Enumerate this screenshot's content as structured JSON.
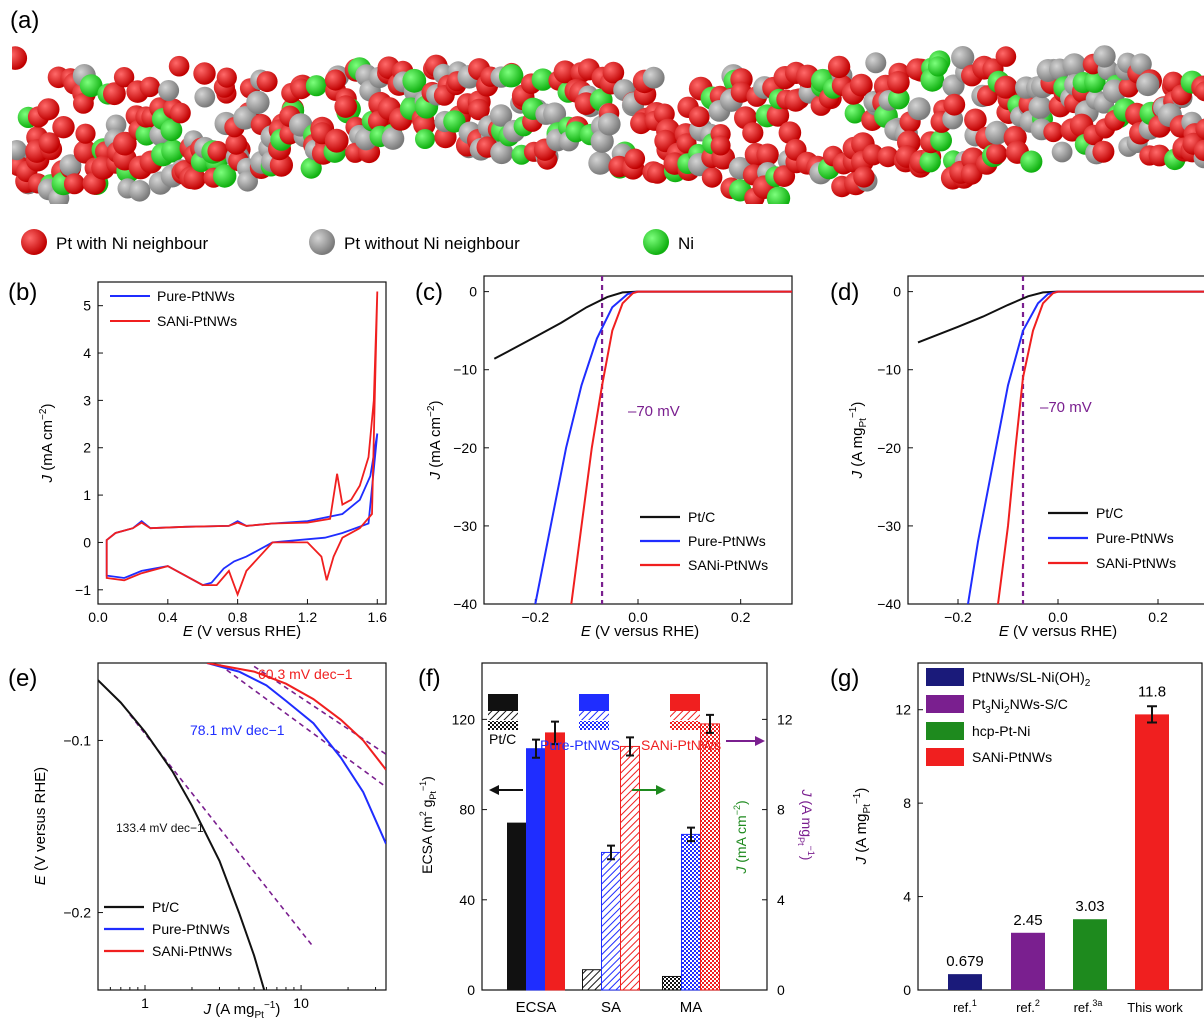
{
  "colors": {
    "black": "#111111",
    "blue": "#1f2dff",
    "red": "#f01f1f",
    "purple": "#7a1f8f",
    "green": "#1e8a1e",
    "navy": "#1a1a7a",
    "pt_ni": "#e01010",
    "pt": "#9a9a9a",
    "ni": "#22dd22"
  },
  "panel_a": {
    "label": "(a)",
    "legend": [
      {
        "label": "Pt with Ni neighbour",
        "color": "#e01010"
      },
      {
        "label": "Pt without Ni neighbour",
        "color": "#9a9a9a"
      },
      {
        "label": "Ni",
        "color": "#22dd22"
      }
    ]
  },
  "chart_data": [
    {
      "panel": "(b)",
      "type": "line",
      "xlabel": "E (V versus RHE)",
      "ylabel": "J (mA cm−2)",
      "xlim": [
        0.0,
        1.65
      ],
      "ylim": [
        -1.3,
        5.5
      ],
      "xticks": [
        0.0,
        0.4,
        0.8,
        1.2,
        1.6
      ],
      "xtick_labels": [
        "0.0",
        "0.4",
        "0.8",
        "1.2",
        "1.6"
      ],
      "yticks": [
        -1,
        0,
        1,
        2,
        3,
        4,
        5
      ],
      "ytick_labels": [
        "−1",
        "0",
        "1",
        "2",
        "3",
        "4",
        "5"
      ],
      "legend_position": "top-left",
      "series": [
        {
          "name": "Pure-PtNWs",
          "color": "blue",
          "forward": [
            [
              0.05,
              0.05
            ],
            [
              0.1,
              0.2
            ],
            [
              0.2,
              0.3
            ],
            [
              0.25,
              0.45
            ],
            [
              0.3,
              0.3
            ],
            [
              0.5,
              0.33
            ],
            [
              0.75,
              0.35
            ],
            [
              0.8,
              0.45
            ],
            [
              0.85,
              0.35
            ],
            [
              1.0,
              0.4
            ],
            [
              1.2,
              0.45
            ],
            [
              1.4,
              0.6
            ],
            [
              1.5,
              0.9
            ],
            [
              1.56,
              1.4
            ],
            [
              1.6,
              2.3
            ]
          ],
          "reverse": [
            [
              1.6,
              2.3
            ],
            [
              1.55,
              0.4
            ],
            [
              1.4,
              0.2
            ],
            [
              1.3,
              0.1
            ],
            [
              1.0,
              0.0
            ],
            [
              0.85,
              -0.3
            ],
            [
              0.78,
              -0.4
            ],
            [
              0.72,
              -0.55
            ],
            [
              0.65,
              -0.85
            ],
            [
              0.6,
              -0.9
            ],
            [
              0.4,
              -0.5
            ],
            [
              0.25,
              -0.6
            ],
            [
              0.15,
              -0.75
            ],
            [
              0.05,
              -0.7
            ]
          ]
        },
        {
          "name": "SANi-PtNWs",
          "color": "red",
          "forward": [
            [
              0.05,
              0.05
            ],
            [
              0.1,
              0.2
            ],
            [
              0.2,
              0.3
            ],
            [
              0.25,
              0.42
            ],
            [
              0.3,
              0.3
            ],
            [
              0.5,
              0.33
            ],
            [
              0.75,
              0.35
            ],
            [
              0.8,
              0.42
            ],
            [
              0.85,
              0.35
            ],
            [
              1.0,
              0.4
            ],
            [
              1.2,
              0.42
            ],
            [
              1.33,
              0.5
            ],
            [
              1.37,
              1.45
            ],
            [
              1.4,
              0.8
            ],
            [
              1.45,
              0.9
            ],
            [
              1.5,
              1.2
            ],
            [
              1.55,
              1.8
            ],
            [
              1.58,
              3.0
            ],
            [
              1.6,
              5.3
            ]
          ],
          "reverse": [
            [
              1.6,
              5.3
            ],
            [
              1.57,
              0.6
            ],
            [
              1.5,
              0.3
            ],
            [
              1.4,
              0.1
            ],
            [
              1.35,
              -0.3
            ],
            [
              1.31,
              -0.8
            ],
            [
              1.28,
              -0.3
            ],
            [
              1.2,
              0.0
            ],
            [
              1.0,
              0.0
            ],
            [
              0.85,
              -0.6
            ],
            [
              0.8,
              -1.1
            ],
            [
              0.75,
              -0.6
            ],
            [
              0.68,
              -0.9
            ],
            [
              0.6,
              -0.9
            ],
            [
              0.4,
              -0.5
            ],
            [
              0.25,
              -0.65
            ],
            [
              0.15,
              -0.8
            ],
            [
              0.05,
              -0.75
            ]
          ]
        }
      ]
    },
    {
      "panel": "(c)",
      "type": "line",
      "xlabel": "E (V versus RHE)",
      "ylabel": "J (mA cm−2)",
      "xlim": [
        -0.3,
        0.3
      ],
      "ylim": [
        -40,
        2
      ],
      "xticks": [
        -0.2,
        0.0,
        0.2
      ],
      "xtick_labels": [
        "−0.2",
        "0.0",
        "0.2"
      ],
      "yticks": [
        -40,
        -30,
        -20,
        -10,
        0
      ],
      "ytick_labels": [
        "−40",
        "−30",
        "−20",
        "−10",
        "0"
      ],
      "annotation": "–70 mV",
      "annotation_x": -0.07,
      "legend_position": "bottom-right",
      "series": [
        {
          "name": "Pt/C",
          "color": "black",
          "points": [
            [
              -0.28,
              -8.6
            ],
            [
              -0.2,
              -5.8
            ],
            [
              -0.15,
              -4.0
            ],
            [
              -0.1,
              -2.0
            ],
            [
              -0.06,
              -0.7
            ],
            [
              -0.03,
              -0.1
            ],
            [
              0.0,
              0.0
            ],
            [
              0.3,
              0.0
            ]
          ]
        },
        {
          "name": "Pure-PtNWs",
          "color": "blue",
          "points": [
            [
              -0.2,
              -40
            ],
            [
              -0.17,
              -30
            ],
            [
              -0.14,
              -20
            ],
            [
              -0.11,
              -12
            ],
            [
              -0.08,
              -6
            ],
            [
              -0.05,
              -2
            ],
            [
              -0.02,
              -0.3
            ],
            [
              0.0,
              0.0
            ],
            [
              0.3,
              0.0
            ]
          ]
        },
        {
          "name": "SANi-PtNWs",
          "color": "red",
          "points": [
            [
              -0.13,
              -40
            ],
            [
              -0.11,
              -30
            ],
            [
              -0.09,
              -20
            ],
            [
              -0.07,
              -12
            ],
            [
              -0.05,
              -5
            ],
            [
              -0.03,
              -1.5
            ],
            [
              -0.01,
              -0.2
            ],
            [
              0.0,
              0.0
            ],
            [
              0.3,
              0.0
            ]
          ]
        }
      ]
    },
    {
      "panel": "(d)",
      "type": "line",
      "xlabel": "E (V versus RHE)",
      "ylabel": "J (A mgPt−1)",
      "xlim": [
        -0.3,
        0.3
      ],
      "ylim": [
        -40,
        2
      ],
      "xticks": [
        -0.2,
        0.0,
        0.2
      ],
      "xtick_labels": [
        "−0.2",
        "0.0",
        "0.2"
      ],
      "yticks": [
        -40,
        -30,
        -20,
        -10,
        0
      ],
      "ytick_labels": [
        "−40",
        "−30",
        "−20",
        "−10",
        "0"
      ],
      "annotation": "–70 mV",
      "annotation_x": -0.07,
      "legend_position": "bottom-right",
      "series": [
        {
          "name": "Pt/C",
          "color": "black",
          "points": [
            [
              -0.28,
              -6.5
            ],
            [
              -0.2,
              -4.5
            ],
            [
              -0.15,
              -3.2
            ],
            [
              -0.1,
              -1.7
            ],
            [
              -0.06,
              -0.6
            ],
            [
              -0.03,
              -0.1
            ],
            [
              0.0,
              0.0
            ],
            [
              0.3,
              0.0
            ]
          ]
        },
        {
          "name": "Pure-PtNWs",
          "color": "blue",
          "points": [
            [
              -0.18,
              -40
            ],
            [
              -0.16,
              -32
            ],
            [
              -0.13,
              -22
            ],
            [
              -0.1,
              -12
            ],
            [
              -0.07,
              -5
            ],
            [
              -0.04,
              -1.5
            ],
            [
              -0.02,
              -0.3
            ],
            [
              0.0,
              0.0
            ],
            [
              0.3,
              0.0
            ]
          ]
        },
        {
          "name": "SANi-PtNWs",
          "color": "red",
          "points": [
            [
              -0.12,
              -40
            ],
            [
              -0.1,
              -30
            ],
            [
              -0.085,
              -20
            ],
            [
              -0.07,
              -11
            ],
            [
              -0.05,
              -5
            ],
            [
              -0.03,
              -1.5
            ],
            [
              -0.01,
              -0.2
            ],
            [
              0.0,
              0.0
            ],
            [
              0.3,
              0.0
            ]
          ]
        }
      ]
    },
    {
      "panel": "(e)",
      "type": "line",
      "xlabel": "J (A mgPt−1)",
      "ylabel": "E (V versus RHE)",
      "xscale": "log",
      "xlim": [
        0.5,
        35
      ],
      "ylim": [
        -0.245,
        -0.055
      ],
      "xticks": [
        1,
        10
      ],
      "xtick_labels": [
        "1",
        "10"
      ],
      "yticks": [
        -0.2,
        -0.1
      ],
      "ytick_labels": [
        "−0.2",
        "−0.1"
      ],
      "legend_position": "bottom-left",
      "annotations": [
        {
          "text": "60.3 mV dec−1",
          "color": "red"
        },
        {
          "text": "78.1 mV dec−1",
          "color": "blue"
        },
        {
          "text": "133.4 mV dec−1",
          "color": "black"
        }
      ],
      "series": [
        {
          "name": "Pt/C",
          "color": "black",
          "points": [
            [
              0.5,
              -0.065
            ],
            [
              0.7,
              -0.078
            ],
            [
              1.0,
              -0.095
            ],
            [
              1.5,
              -0.118
            ],
            [
              2.0,
              -0.138
            ],
            [
              3.0,
              -0.17
            ],
            [
              4.0,
              -0.2
            ],
            [
              5.0,
              -0.225
            ],
            [
              5.8,
              -0.245
            ]
          ]
        },
        {
          "name": "Pure-PtNWs",
          "color": "blue",
          "points": [
            [
              2.5,
              -0.055
            ],
            [
              4,
              -0.06
            ],
            [
              6,
              -0.068
            ],
            [
              8,
              -0.077
            ],
            [
              12,
              -0.09
            ],
            [
              18,
              -0.11
            ],
            [
              25,
              -0.13
            ],
            [
              35,
              -0.16
            ]
          ]
        },
        {
          "name": "SANi-PtNWs",
          "color": "red",
          "points": [
            [
              2.5,
              -0.055
            ],
            [
              5,
              -0.06
            ],
            [
              8,
              -0.067
            ],
            [
              12,
              -0.076
            ],
            [
              18,
              -0.088
            ],
            [
              25,
              -0.1
            ],
            [
              35,
              -0.117
            ]
          ]
        }
      ],
      "tafel_fits": [
        {
          "color": "purple",
          "points": [
            [
              0.8,
              -0.085
            ],
            [
              12,
              -0.22
            ]
          ]
        },
        {
          "color": "purple",
          "points": [
            [
              3,
              -0.056
            ],
            [
              35,
              -0.127
            ]
          ]
        },
        {
          "color": "purple",
          "points": [
            [
              5,
              -0.057
            ],
            [
              35,
              -0.108
            ]
          ]
        }
      ]
    },
    {
      "panel": "(f)",
      "type": "bar",
      "categories": [
        "ECSA",
        "SA",
        "MA"
      ],
      "ylabel_left": "ECSA (m2 gPt−1)",
      "ylabel_right_1": "J (mA cm−2)",
      "ylabel_right_2": "J (A mgPt−1)",
      "ylim_left": [
        0,
        145
      ],
      "yticks_left": [
        0,
        40,
        80,
        120
      ],
      "ylim_right": [
        0,
        14.5
      ],
      "yticks_right": [
        0,
        4,
        8,
        12
      ],
      "legend_labels": [
        "Pt/C",
        "Pure-PtNWS",
        "SANi-PtNWs"
      ],
      "series": [
        {
          "name": "Pt/C",
          "color": "black",
          "values_left_scale": [
            74,
            9,
            6
          ],
          "errors": [
            0,
            0,
            0
          ]
        },
        {
          "name": "Pure-PtNWS",
          "color": "blue",
          "values_left_scale": [
            107,
            61,
            69
          ],
          "errors": [
            4,
            3,
            3
          ]
        },
        {
          "name": "SANi-PtNWs",
          "color": "red",
          "values_left_scale": [
            114,
            108,
            118
          ],
          "errors": [
            5,
            4,
            4
          ]
        }
      ]
    },
    {
      "panel": "(g)",
      "type": "bar",
      "ylabel": "J (A mgPt−1)",
      "ylim": [
        0,
        14
      ],
      "yticks": [
        0,
        4,
        8,
        12
      ],
      "categories": [
        "ref.1",
        "ref.2",
        "ref.3a",
        "This work"
      ],
      "values": [
        0.679,
        2.45,
        3.03,
        11.8
      ],
      "value_labels": [
        "0.679",
        "2.45",
        "3.03",
        "11.8"
      ],
      "colors": [
        "#1a1a7a",
        "#7a1f8f",
        "#1e8a1e",
        "#f01f1f"
      ],
      "legend": [
        "PtNWs/SL-Ni(OH)2",
        "Pt3Ni2NWs-S/C",
        "hcp-Pt-Ni",
        "SANi-PtNWs"
      ],
      "legend_position": "top-left"
    }
  ]
}
